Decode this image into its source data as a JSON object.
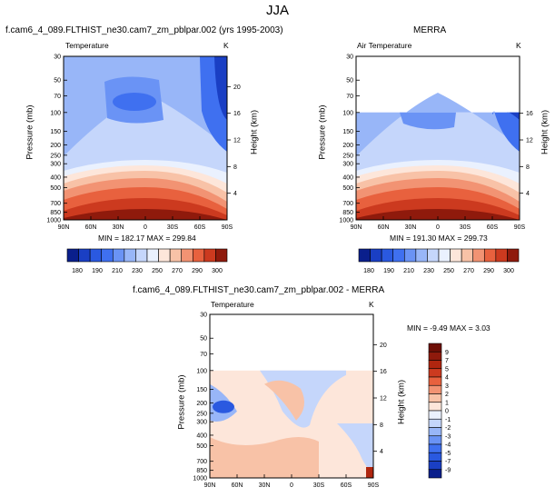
{
  "season": "JJA",
  "panels": [
    {
      "id": "model",
      "title": "f.cam6_4_089.FLTHIST_ne30.cam7_zm_pblpar.002 (yrs 1995-2003)",
      "variable": "Temperature",
      "units": "K",
      "left_axis_label": "Pressure (mb)",
      "right_axis_label": "Height (km)",
      "stats": "MIN = 182.17  MAX = 299.84"
    },
    {
      "id": "obs",
      "title": "MERRA",
      "variable": "Air Temperature",
      "units": "K",
      "left_axis_label": "Pressure (mb)",
      "right_axis_label": "Height (km)",
      "stats": "MIN = 191.30  MAX = 299.73"
    },
    {
      "id": "diff",
      "title": "f.cam6_4_089.FLTHIST_ne30.cam7_zm_pblpar.002 - MERRA",
      "variable": "Temperature",
      "units": "K",
      "left_axis_label": "Pressure (mb)",
      "right_axis_label": "Height (km)",
      "stats": "MIN = -9.49  MAX =   3.03"
    }
  ],
  "chart_data": [
    {
      "type": "heatmap",
      "panel": "model",
      "x": [
        "90N",
        "60N",
        "30N",
        "0",
        "30S",
        "60S",
        "90S"
      ],
      "y_pressure_ticks": [
        30,
        50,
        70,
        100,
        150,
        200,
        250,
        300,
        400,
        500,
        700,
        850,
        1000
      ],
      "y_height_ticks": [
        20,
        16,
        12,
        8,
        4
      ],
      "ylim": [
        1000,
        30
      ],
      "y_scale": "log",
      "contour_levels": [
        180,
        190,
        200,
        210,
        220,
        230,
        240,
        250,
        260,
        270,
        280,
        290,
        300
      ],
      "colorbar_labels": [
        "180",
        "190",
        "210",
        "230",
        "250",
        "270",
        "290",
        "300"
      ],
      "colors": [
        "#0a1f8c",
        "#1a3fc4",
        "#2a59e0",
        "#3f70f0",
        "#6a93f5",
        "#98b6f8",
        "#c5d6fb",
        "#eaf1fe",
        "#fde6da",
        "#f8c2a7",
        "#f29373",
        "#e8613e",
        "#cc3a1f",
        "#8f1a0c"
      ],
      "min": 182.17,
      "max": 299.84
    },
    {
      "type": "heatmap",
      "panel": "obs",
      "x": [
        "90N",
        "60N",
        "30N",
        "0",
        "30S",
        "60S",
        "90S"
      ],
      "y_pressure_ticks": [
        30,
        50,
        70,
        100,
        150,
        200,
        250,
        300,
        400,
        500,
        700,
        850,
        1000
      ],
      "y_height_ticks": [
        16,
        12,
        8,
        4
      ],
      "ylim": [
        1000,
        30
      ],
      "y_scale": "log",
      "data_top_pressure": 100,
      "contour_levels": [
        180,
        190,
        200,
        210,
        220,
        230,
        240,
        250,
        260,
        270,
        280,
        290,
        300
      ],
      "colorbar_labels": [
        "180",
        "190",
        "210",
        "230",
        "250",
        "270",
        "290",
        "300"
      ],
      "min": 191.3,
      "max": 299.73
    },
    {
      "type": "heatmap",
      "panel": "diff",
      "x": [
        "90N",
        "60N",
        "30N",
        "0",
        "30S",
        "60S",
        "90S"
      ],
      "y_pressure_ticks": [
        30,
        50,
        70,
        100,
        150,
        200,
        250,
        300,
        400,
        500,
        700,
        850,
        1000
      ],
      "y_height_ticks": [
        20,
        16,
        12,
        8,
        4
      ],
      "ylim": [
        1000,
        30
      ],
      "y_scale": "log",
      "data_top_pressure": 100,
      "contour_levels": [
        -9,
        -7,
        -5,
        -4,
        -3,
        -2,
        -1,
        0,
        1,
        2,
        3,
        4,
        5,
        7,
        9
      ],
      "colorbar_labels": [
        "9",
        "7",
        "5",
        "4",
        "3",
        "2",
        "1",
        "0",
        "-1",
        "-2",
        "-3",
        "-4",
        "-5",
        "-7",
        "-9"
      ],
      "colors": [
        "#0a1f8c",
        "#1a3fc4",
        "#2a59e0",
        "#3f70f0",
        "#6a93f5",
        "#98b6f8",
        "#c5d6fb",
        "#eaf1fe",
        "#fde6da",
        "#f8c2a7",
        "#f29373",
        "#e8613e",
        "#cc3a1f",
        "#b0260f",
        "#8f1a0c",
        "#6e0f06"
      ],
      "min": -9.49,
      "max": 3.03
    }
  ]
}
